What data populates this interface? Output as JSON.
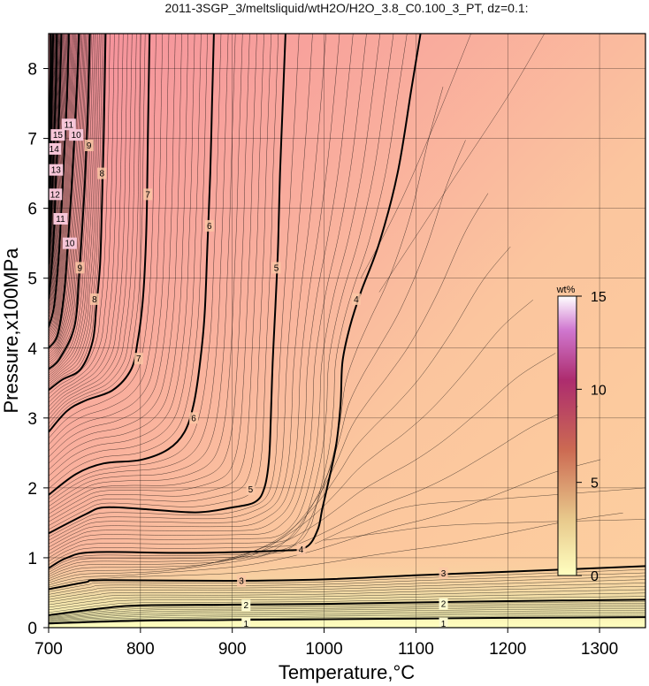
{
  "chart_data": {
    "type": "contour",
    "title": "2011-3SGP_3/meltsliquid/wtH2O/H2O_3.8_C0.100_3_PT, dz=0.1:",
    "xlabel": "Temperature,°C",
    "ylabel": "Pressure,x100MPa",
    "xlim": [
      700,
      1350
    ],
    "ylim": [
      0,
      8.5
    ],
    "x_ticks": [
      700,
      800,
      900,
      1000,
      1100,
      1200,
      1300
    ],
    "y_ticks": [
      0,
      1,
      2,
      3,
      4,
      5,
      6,
      7,
      8
    ],
    "grid": true,
    "colorbar": {
      "title": "wt%",
      "range": [
        0,
        15
      ],
      "ticks": [
        0,
        5,
        10,
        15
      ],
      "colors": [
        "#ffffc0",
        "#e6c88a",
        "#c8604a",
        "#b02a70",
        "#ffffff"
      ]
    },
    "background_colors": {
      "high": "#f79aa0",
      "mid": "#fbbf9a",
      "low": "#fecf9f",
      "bottom": "#fdf0b0"
    },
    "contours": [
      {
        "level": 1,
        "points": [
          [
            700,
            0.06
          ],
          [
            800,
            0.1
          ],
          [
            900,
            0.11
          ],
          [
            1000,
            0.12
          ],
          [
            1100,
            0.13
          ],
          [
            1200,
            0.14
          ],
          [
            1350,
            0.15
          ]
        ]
      },
      {
        "level": 2,
        "points": [
          [
            700,
            0.18
          ],
          [
            760,
            0.28
          ],
          [
            800,
            0.32
          ],
          [
            900,
            0.33
          ],
          [
            1000,
            0.34
          ],
          [
            1100,
            0.36
          ],
          [
            1200,
            0.38
          ],
          [
            1350,
            0.4
          ]
        ]
      },
      {
        "level": 3,
        "points": [
          [
            700,
            0.55
          ],
          [
            740,
            0.65
          ],
          [
            760,
            0.68
          ],
          [
            900,
            0.67
          ],
          [
            1000,
            0.69
          ],
          [
            1100,
            0.75
          ],
          [
            1200,
            0.8
          ],
          [
            1350,
            0.88
          ]
        ]
      },
      {
        "level": 4,
        "points": [
          [
            700,
            0.85
          ],
          [
            720,
            1.0
          ],
          [
            750,
            1.08
          ],
          [
            850,
            1.07
          ],
          [
            950,
            1.1
          ],
          [
            980,
            1.15
          ],
          [
            993,
            1.4
          ],
          [
            998,
            1.7
          ],
          [
            1005,
            2.1
          ],
          [
            1013,
            2.6
          ],
          [
            1018,
            3.2
          ],
          [
            1020,
            3.8
          ],
          [
            1028,
            4.3
          ],
          [
            1040,
            4.8
          ],
          [
            1060,
            5.5
          ],
          [
            1080,
            6.5
          ],
          [
            1095,
            7.7
          ],
          [
            1105,
            8.5
          ]
        ]
      },
      {
        "level": 5,
        "points": [
          [
            700,
            1.35
          ],
          [
            740,
            1.62
          ],
          [
            760,
            1.72
          ],
          [
            800,
            1.7
          ],
          [
            860,
            1.65
          ],
          [
            900,
            1.72
          ],
          [
            925,
            1.8
          ],
          [
            935,
            2.0
          ],
          [
            940,
            2.4
          ],
          [
            942,
            3.0
          ],
          [
            944,
            3.8
          ],
          [
            947,
            4.6
          ],
          [
            950,
            5.5
          ],
          [
            952,
            6.5
          ],
          [
            955,
            7.5
          ],
          [
            958,
            8.5
          ]
        ]
      },
      {
        "level": 6,
        "points": [
          [
            700,
            1.9
          ],
          [
            730,
            2.2
          ],
          [
            760,
            2.35
          ],
          [
            800,
            2.4
          ],
          [
            830,
            2.55
          ],
          [
            848,
            2.8
          ],
          [
            858,
            3.2
          ],
          [
            865,
            3.8
          ],
          [
            870,
            4.5
          ],
          [
            873,
            5.5
          ],
          [
            876,
            6.5
          ],
          [
            878,
            7.5
          ],
          [
            880,
            8.5
          ]
        ]
      },
      {
        "level": 7,
        "points": [
          [
            700,
            2.8
          ],
          [
            720,
            3.1
          ],
          [
            740,
            3.25
          ],
          [
            770,
            3.4
          ],
          [
            790,
            3.7
          ],
          [
            797,
            4.1
          ],
          [
            802,
            4.6
          ],
          [
            805,
            5.2
          ],
          [
            807,
            6.0
          ],
          [
            808,
            7.0
          ],
          [
            810,
            8.5
          ]
        ]
      },
      {
        "level": 8,
        "points": [
          [
            700,
            3.4
          ],
          [
            715,
            3.55
          ],
          [
            735,
            3.7
          ],
          [
            748,
            4.1
          ],
          [
            752,
            4.6
          ],
          [
            756,
            5.2
          ],
          [
            758,
            6.0
          ],
          [
            760,
            7.0
          ],
          [
            762,
            8.5
          ]
        ]
      },
      {
        "level": 9,
        "points": [
          [
            700,
            3.7
          ],
          [
            712,
            3.85
          ],
          [
            728,
            4.3
          ],
          [
            733,
            5.0
          ],
          [
            737,
            5.8
          ],
          [
            740,
            6.5
          ],
          [
            743,
            7.5
          ],
          [
            745,
            8.5
          ]
        ]
      },
      {
        "level": 10,
        "points": [
          [
            700,
            4.0
          ],
          [
            710,
            4.2
          ],
          [
            717,
            4.8
          ],
          [
            721,
            5.5
          ],
          [
            725,
            6.3
          ],
          [
            728,
            7.0
          ],
          [
            731,
            7.8
          ],
          [
            733,
            8.5
          ]
        ]
      },
      {
        "level": 11,
        "points": [
          [
            700,
            4.3
          ],
          [
            706,
            4.6
          ],
          [
            711,
            5.3
          ],
          [
            714,
            6.0
          ],
          [
            717,
            6.8
          ],
          [
            720,
            7.6
          ],
          [
            722,
            8.5
          ]
        ]
      },
      {
        "level": 12,
        "points": [
          [
            700,
            4.7
          ],
          [
            703,
            5.1
          ],
          [
            706,
            5.7
          ],
          [
            708,
            6.4
          ],
          [
            711,
            7.2
          ],
          [
            713,
            8.0
          ],
          [
            714,
            8.5
          ]
        ]
      },
      {
        "level": 13,
        "points": [
          [
            700,
            5.2
          ],
          [
            702,
            5.7
          ],
          [
            704,
            6.3
          ],
          [
            706,
            7.0
          ],
          [
            708,
            7.8
          ],
          [
            709,
            8.5
          ]
        ]
      },
      {
        "level": 14,
        "points": [
          [
            700,
            5.8
          ],
          [
            702,
            6.5
          ],
          [
            703,
            7.2
          ],
          [
            704,
            8.0
          ],
          [
            705,
            8.5
          ]
        ]
      },
      {
        "level": 15,
        "points": [
          [
            700,
            6.4
          ],
          [
            701,
            7.2
          ],
          [
            702,
            8.0
          ],
          [
            702,
            8.5
          ]
        ]
      }
    ],
    "contour_labels": [
      {
        "text": "1",
        "x": 915,
        "y": 0.06
      },
      {
        "text": "1",
        "x": 1130,
        "y": 0.06
      },
      {
        "text": "2",
        "x": 915,
        "y": 0.32
      },
      {
        "text": "2",
        "x": 1130,
        "y": 0.34
      },
      {
        "text": "3",
        "x": 910,
        "y": 0.67
      },
      {
        "text": "3",
        "x": 1130,
        "y": 0.78
      },
      {
        "text": "4",
        "x": 975,
        "y": 1.12
      },
      {
        "text": "4",
        "x": 1035,
        "y": 4.7
      },
      {
        "text": "5",
        "x": 920,
        "y": 1.98
      },
      {
        "text": "5",
        "x": 948,
        "y": 5.15
      },
      {
        "text": "6",
        "x": 858,
        "y": 3.0
      },
      {
        "text": "6",
        "x": 875,
        "y": 5.75
      },
      {
        "text": "7",
        "x": 798,
        "y": 3.85
      },
      {
        "text": "7",
        "x": 808,
        "y": 6.2
      },
      {
        "text": "8",
        "x": 750,
        "y": 4.7
      },
      {
        "text": "8",
        "x": 758,
        "y": 6.5
      },
      {
        "text": "9",
        "x": 734,
        "y": 5.15
      },
      {
        "text": "9",
        "x": 744,
        "y": 6.9
      },
      {
        "text": "10",
        "x": 723,
        "y": 5.5
      },
      {
        "text": "10",
        "x": 730,
        "y": 7.05
      },
      {
        "text": "11",
        "x": 713,
        "y": 5.85
      },
      {
        "text": "11",
        "x": 722,
        "y": 7.2
      },
      {
        "text": "12",
        "x": 707,
        "y": 6.2
      },
      {
        "text": "13",
        "x": 708,
        "y": 6.55
      },
      {
        "text": "14",
        "x": 706,
        "y": 6.85
      },
      {
        "text": "15",
        "x": 710,
        "y": 7.05
      }
    ]
  }
}
